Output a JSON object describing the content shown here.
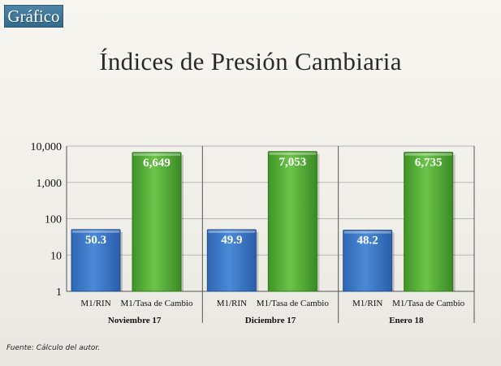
{
  "badge": {
    "label": "Gráfico"
  },
  "source": "Fuente: Cálculo del autor.",
  "colors": {
    "rin": "#3f7fcf",
    "tasa": "#5cb43a"
  },
  "chart_data": {
    "type": "bar",
    "title": "Índices de Presión Cambiaria",
    "yscale": "log",
    "ylim": [
      1,
      10000
    ],
    "yticks": [
      1,
      10,
      100,
      1000,
      10000
    ],
    "ytick_labels": [
      "1",
      "10",
      "100",
      "1,000",
      "10,000"
    ],
    "grid": true,
    "groups": [
      {
        "name": "Noviembre 17",
        "bars": [
          {
            "label": "M1/RIN",
            "value": 50.3,
            "text": "50.3"
          },
          {
            "label": "M1/Tasa de Cambio",
            "value": 6649,
            "text": "6,649"
          }
        ]
      },
      {
        "name": "Diciembre 17",
        "bars": [
          {
            "label": "M1/RIN",
            "value": 49.9,
            "text": "49.9"
          },
          {
            "label": "M1/Tasa de Cambio",
            "value": 7053,
            "text": "7,053"
          }
        ]
      },
      {
        "name": "Enero 18",
        "bars": [
          {
            "label": "M1/RIN",
            "value": 48.2,
            "text": "48.2"
          },
          {
            "label": "M1/Tasa de Cambio",
            "value": 6735,
            "text": "6,735"
          }
        ]
      }
    ]
  }
}
